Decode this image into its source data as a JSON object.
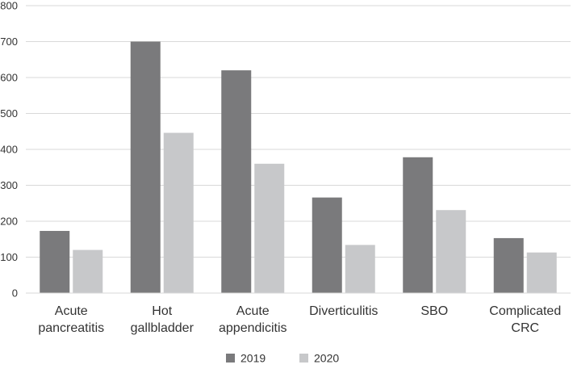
{
  "chart_data": {
    "type": "bar",
    "categories": [
      [
        "Acute",
        "pancreatitis"
      ],
      [
        "Hot",
        "gallbladder"
      ],
      [
        "Acute",
        "appendicitis"
      ],
      [
        "Diverticulitis"
      ],
      [
        "SBO"
      ],
      [
        "Complicated",
        "CRC"
      ]
    ],
    "series": [
      {
        "name": "2019",
        "color": "#7a7a7c",
        "values": [
          173,
          700,
          620,
          266,
          378,
          153
        ]
      },
      {
        "name": "2020",
        "color": "#c7c8ca",
        "values": [
          120,
          446,
          360,
          134,
          231,
          113
        ]
      }
    ],
    "yticks": [
      0,
      100,
      200,
      300,
      400,
      500,
      600,
      700,
      800
    ],
    "ylim": [
      0,
      800
    ],
    "grid": true,
    "gridColor": "#d9d9d9",
    "legend_position": "bottom"
  }
}
